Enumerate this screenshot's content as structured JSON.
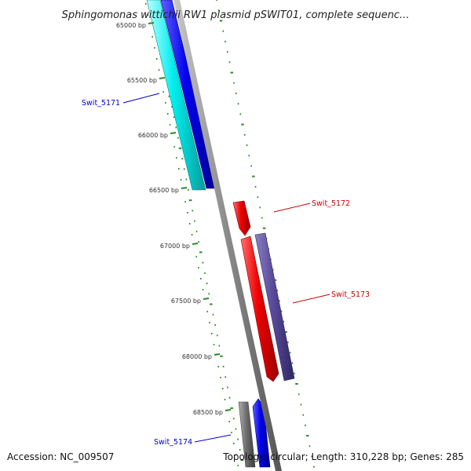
{
  "title": "Sphingomonas wittichii RW1 plasmid pSWIT01, complete sequenc...",
  "ticks": [
    "65000 bp",
    "65500 bp",
    "66000 bp",
    "66500 bp",
    "67000 bp",
    "67500 bp",
    "68000 bp",
    "68500 bp"
  ],
  "genes": [
    {
      "name": "Swit_5171",
      "strand": "reverse",
      "color": "#0000cc"
    },
    {
      "name": "Swit_5172",
      "strand": "forward",
      "color": "#cc0000"
    },
    {
      "name": "Swit_5173",
      "strand": "forward",
      "color": "#cc0000"
    },
    {
      "name": "Swit_5174",
      "strand": "reverse",
      "color": "#0000cc"
    }
  ],
  "footer": {
    "accession": "Accession: NC_009507",
    "topology": "Topology: circular; Length: 310,228 bp; Genes: 285"
  },
  "colors": {
    "backbone": "#8a8a8a",
    "cds_forward": "#ee0000",
    "cds_reverse": "#0000ee",
    "cog_cyan": "#00eeee",
    "cog_purple": "#5a4a9a",
    "cog_gray": "#707070",
    "gc_dash": "#2a8a2a"
  }
}
